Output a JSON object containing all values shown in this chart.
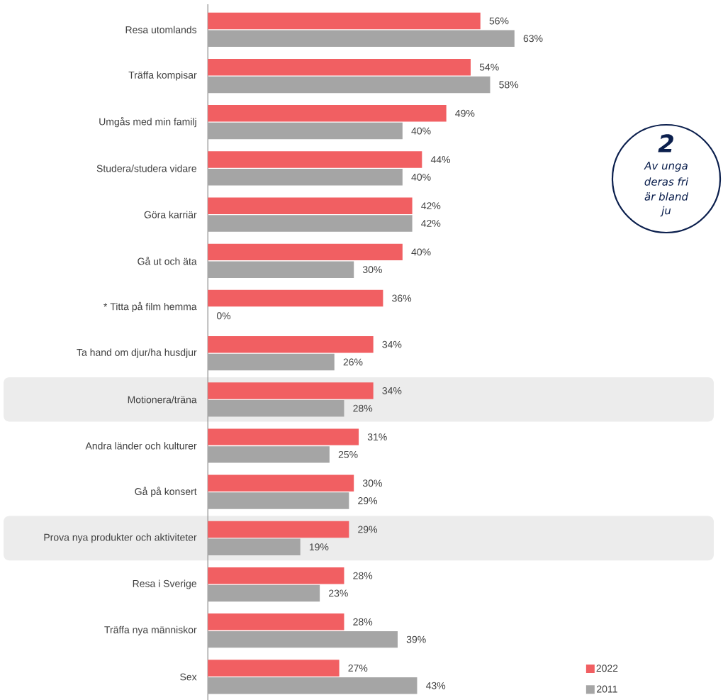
{
  "chart_data": {
    "type": "bar",
    "orientation": "horizontal",
    "categories": [
      "Resa utomlands",
      "Träffa kompisar",
      "Umgås med min familj",
      "Studera/studera vidare",
      "Göra karriär",
      "Gå ut och äta",
      "* Titta på film hemma",
      "Ta hand om djur/ha husdjur",
      "Motionera/träna",
      "Andra länder och kulturer",
      "Gå på konsert",
      "Prova nya produkter och aktiviteter",
      "Resa i Sverige",
      "Träffa nya människor",
      "Sex"
    ],
    "series": [
      {
        "name": "2022",
        "color": "#f15f62",
        "values": [
          56,
          54,
          49,
          44,
          42,
          40,
          36,
          34,
          34,
          31,
          30,
          29,
          28,
          28,
          27
        ],
        "value_labels": [
          "56%",
          "54%",
          "49%",
          "44%",
          "42%",
          "40%",
          "36%",
          "34%",
          "34%",
          "31%",
          "30%",
          "29%",
          "28%",
          "28%",
          "27%"
        ]
      },
      {
        "name": "2011",
        "color": "#a5a5a5",
        "values": [
          63,
          58,
          40,
          40,
          42,
          30,
          0,
          26,
          28,
          25,
          29,
          19,
          23,
          39,
          43
        ],
        "value_labels": [
          "63%",
          "58%",
          "40%",
          "40%",
          "42%",
          "30%",
          "0%",
          "26%",
          "28%",
          "25%",
          "29%",
          "19%",
          "23%",
          "39%",
          "43%"
        ]
      }
    ],
    "bands": [
      {
        "axis": "y",
        "from": "Motionera/träna",
        "to": "Motionera/träna",
        "color": "#ececec"
      },
      {
        "axis": "y",
        "from": "Prova nya produkter och aktiviteter",
        "to": "Prova nya produkter och aktiviteter",
        "color": "#ececec"
      }
    ],
    "annotations": [
      "2",
      "Av unga",
      "deras fri",
      "är bland",
      "ju"
    ],
    "legend": "bottom right"
  }
}
